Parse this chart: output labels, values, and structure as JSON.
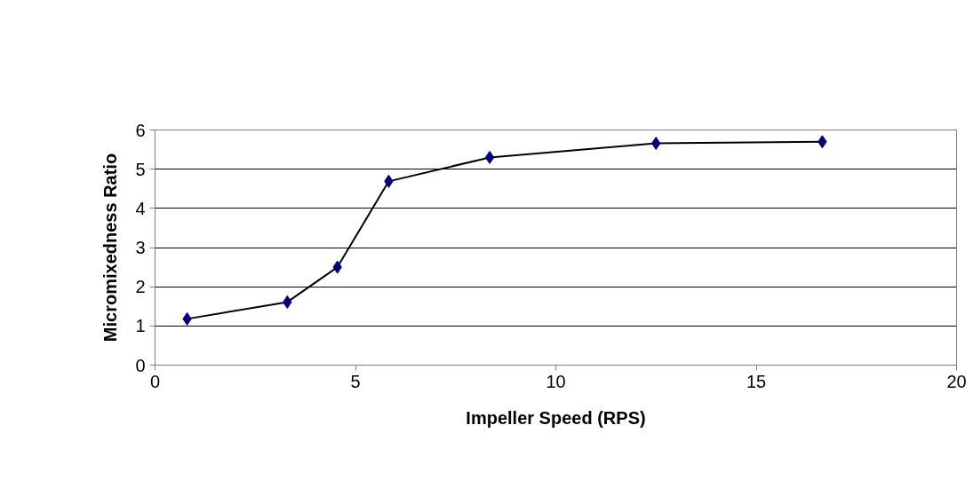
{
  "chart_data": {
    "type": "line",
    "xlabel": "Impeller Speed (RPS)",
    "ylabel": "Micromixedness Ratio",
    "x": [
      0.8,
      3.3,
      4.55,
      5.83,
      8.35,
      12.5,
      16.65
    ],
    "series": [
      {
        "color": "#000080",
        "values": [
          1.18,
          1.61,
          2.5,
          4.69,
          5.3,
          5.66,
          5.7
        ]
      }
    ],
    "xlim": [
      0,
      20
    ],
    "xticks": [
      0,
      5,
      10,
      15,
      20
    ],
    "ylim": [
      0,
      6
    ],
    "yticks": [
      0,
      1,
      2,
      3,
      4,
      5,
      6
    ],
    "grid": "y",
    "marker": "diamond",
    "line_style": "solid"
  }
}
